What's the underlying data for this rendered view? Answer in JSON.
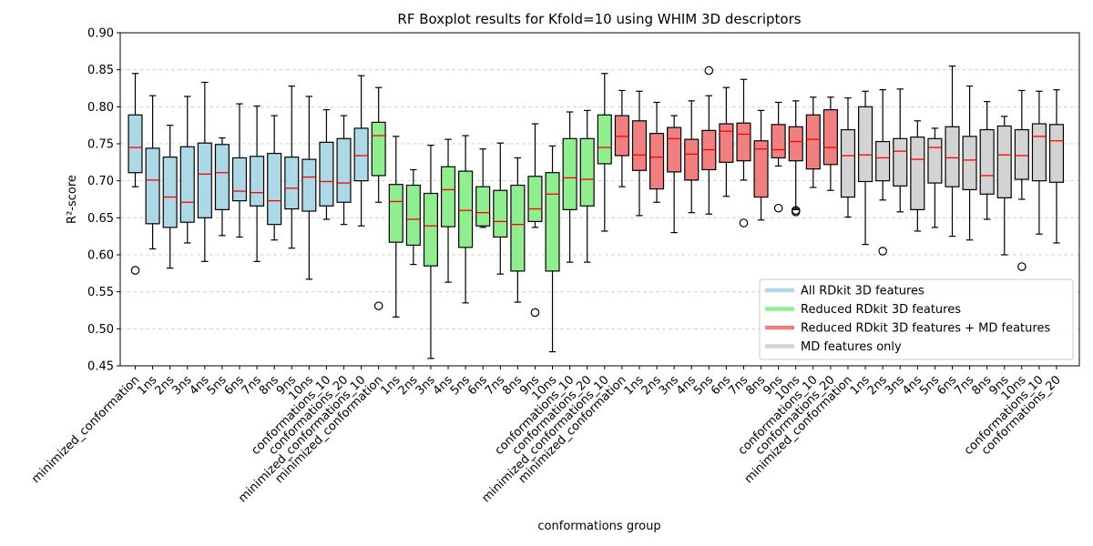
{
  "chart_data": {
    "type": "boxplot",
    "title": "RF Boxplot results for Kfold=10 using WHIM 3D descriptors",
    "xlabel": "conformations group",
    "ylabel": "R²-score",
    "ylim": [
      0.45,
      0.9
    ],
    "yticks": [
      "0.45",
      "0.50",
      "0.55",
      "0.60",
      "0.65",
      "0.70",
      "0.75",
      "0.80",
      "0.85",
      "0.90"
    ],
    "grid": "y-dashed",
    "legend_position": "lower-right",
    "median_color": "#ff0000",
    "groups": [
      {
        "name": "All RDkit 3D features",
        "color": "#add8e6",
        "boxes": [
          {
            "label": "minimized_conformation",
            "whislo": 0.692,
            "q1": 0.711,
            "med": 0.745,
            "q3": 0.789,
            "whishi": 0.845,
            "fliers": [
              0.579
            ]
          },
          {
            "label": "1ns",
            "whislo": 0.608,
            "q1": 0.642,
            "med": 0.701,
            "q3": 0.744,
            "whishi": 0.815,
            "fliers": []
          },
          {
            "label": "2ns",
            "whislo": 0.582,
            "q1": 0.637,
            "med": 0.678,
            "q3": 0.732,
            "whishi": 0.775,
            "fliers": []
          },
          {
            "label": "3ns",
            "whislo": 0.616,
            "q1": 0.644,
            "med": 0.671,
            "q3": 0.746,
            "whishi": 0.814,
            "fliers": []
          },
          {
            "label": "4ns",
            "whislo": 0.591,
            "q1": 0.65,
            "med": 0.709,
            "q3": 0.751,
            "whishi": 0.833,
            "fliers": []
          },
          {
            "label": "5ns",
            "whislo": 0.626,
            "q1": 0.661,
            "med": 0.711,
            "q3": 0.749,
            "whishi": 0.758,
            "fliers": []
          },
          {
            "label": "6ns",
            "whislo": 0.624,
            "q1": 0.673,
            "med": 0.686,
            "q3": 0.731,
            "whishi": 0.804,
            "fliers": []
          },
          {
            "label": "7ns",
            "whislo": 0.591,
            "q1": 0.666,
            "med": 0.684,
            "q3": 0.733,
            "whishi": 0.801,
            "fliers": []
          },
          {
            "label": "8ns",
            "whislo": 0.62,
            "q1": 0.641,
            "med": 0.673,
            "q3": 0.737,
            "whishi": 0.788,
            "fliers": []
          },
          {
            "label": "9ns",
            "whislo": 0.609,
            "q1": 0.662,
            "med": 0.69,
            "q3": 0.732,
            "whishi": 0.828,
            "fliers": []
          },
          {
            "label": "10ns",
            "whislo": 0.567,
            "q1": 0.659,
            "med": 0.705,
            "q3": 0.729,
            "whishi": 0.814,
            "fliers": []
          },
          {
            "label": "conformations_10",
            "whislo": 0.648,
            "q1": 0.666,
            "med": 0.699,
            "q3": 0.752,
            "whishi": 0.796,
            "fliers": []
          },
          {
            "label": "conformations_20",
            "whislo": 0.641,
            "q1": 0.671,
            "med": 0.697,
            "q3": 0.757,
            "whishi": 0.788,
            "fliers": []
          },
          {
            "label": "minimized_conformations_10",
            "whislo": 0.639,
            "q1": 0.7,
            "med": 0.734,
            "q3": 0.771,
            "whishi": 0.842,
            "fliers": []
          }
        ]
      },
      {
        "name": "Reduced RDkit 3D features",
        "color": "#90ee90",
        "boxes": [
          {
            "label": "minimized_conformation",
            "whislo": 0.671,
            "q1": 0.707,
            "med": 0.761,
            "q3": 0.779,
            "whishi": 0.826,
            "fliers": [
              0.531
            ]
          },
          {
            "label": "1ns",
            "whislo": 0.516,
            "q1": 0.617,
            "med": 0.672,
            "q3": 0.695,
            "whishi": 0.76,
            "fliers": []
          },
          {
            "label": "2ns",
            "whislo": 0.587,
            "q1": 0.613,
            "med": 0.648,
            "q3": 0.694,
            "whishi": 0.715,
            "fliers": []
          },
          {
            "label": "3ns",
            "whislo": 0.46,
            "q1": 0.585,
            "med": 0.639,
            "q3": 0.683,
            "whishi": 0.748,
            "fliers": []
          },
          {
            "label": "4ns",
            "whislo": 0.563,
            "q1": 0.638,
            "med": 0.688,
            "q3": 0.719,
            "whishi": 0.756,
            "fliers": []
          },
          {
            "label": "5ns",
            "whislo": 0.535,
            "q1": 0.61,
            "med": 0.66,
            "q3": 0.713,
            "whishi": 0.761,
            "fliers": []
          },
          {
            "label": "6ns",
            "whislo": 0.637,
            "q1": 0.639,
            "med": 0.657,
            "q3": 0.692,
            "whishi": 0.743,
            "fliers": []
          },
          {
            "label": "7ns",
            "whislo": 0.574,
            "q1": 0.624,
            "med": 0.645,
            "q3": 0.687,
            "whishi": 0.751,
            "fliers": []
          },
          {
            "label": "8ns",
            "whislo": 0.536,
            "q1": 0.578,
            "med": 0.641,
            "q3": 0.694,
            "whishi": 0.731,
            "fliers": []
          },
          {
            "label": "9ns",
            "whislo": 0.637,
            "q1": 0.645,
            "med": 0.662,
            "q3": 0.706,
            "whishi": 0.777,
            "fliers": [
              0.522
            ]
          },
          {
            "label": "10ns",
            "whislo": 0.469,
            "q1": 0.578,
            "med": 0.682,
            "q3": 0.711,
            "whishi": 0.747,
            "fliers": []
          },
          {
            "label": "conformations_10",
            "whislo": 0.59,
            "q1": 0.661,
            "med": 0.704,
            "q3": 0.757,
            "whishi": 0.793,
            "fliers": []
          },
          {
            "label": "conformations_20",
            "whislo": 0.59,
            "q1": 0.666,
            "med": 0.702,
            "q3": 0.757,
            "whishi": 0.795,
            "fliers": []
          },
          {
            "label": "minimized_conformations_10",
            "whislo": 0.632,
            "q1": 0.723,
            "med": 0.745,
            "q3": 0.789,
            "whishi": 0.845,
            "fliers": []
          }
        ]
      },
      {
        "name": "Reduced RDkit 3D features + MD features",
        "color": "#f08080",
        "boxes": [
          {
            "label": "minimized_conformation",
            "whislo": 0.692,
            "q1": 0.734,
            "med": 0.76,
            "q3": 0.788,
            "whishi": 0.822,
            "fliers": []
          },
          {
            "label": "1ns",
            "whislo": 0.653,
            "q1": 0.714,
            "med": 0.735,
            "q3": 0.781,
            "whishi": 0.821,
            "fliers": []
          },
          {
            "label": "2ns",
            "whislo": 0.671,
            "q1": 0.689,
            "med": 0.732,
            "q3": 0.764,
            "whishi": 0.806,
            "fliers": []
          },
          {
            "label": "3ns",
            "whislo": 0.63,
            "q1": 0.712,
            "med": 0.757,
            "q3": 0.772,
            "whishi": 0.788,
            "fliers": []
          },
          {
            "label": "4ns",
            "whislo": 0.657,
            "q1": 0.701,
            "med": 0.736,
            "q3": 0.756,
            "whishi": 0.808,
            "fliers": []
          },
          {
            "label": "5ns",
            "whislo": 0.655,
            "q1": 0.715,
            "med": 0.742,
            "q3": 0.768,
            "whishi": 0.815,
            "fliers": [
              0.849
            ]
          },
          {
            "label": "6ns",
            "whislo": 0.679,
            "q1": 0.725,
            "med": 0.767,
            "q3": 0.777,
            "whishi": 0.826,
            "fliers": []
          },
          {
            "label": "7ns",
            "whislo": 0.701,
            "q1": 0.727,
            "med": 0.763,
            "q3": 0.778,
            "whishi": 0.837,
            "fliers": [
              0.643
            ]
          },
          {
            "label": "8ns",
            "whislo": 0.647,
            "q1": 0.678,
            "med": 0.743,
            "q3": 0.754,
            "whishi": 0.795,
            "fliers": []
          },
          {
            "label": "9ns",
            "whislo": 0.72,
            "q1": 0.731,
            "med": 0.742,
            "q3": 0.776,
            "whishi": 0.806,
            "fliers": [
              0.663
            ]
          },
          {
            "label": "10ns",
            "whislo": 0.661,
            "q1": 0.727,
            "med": 0.753,
            "q3": 0.773,
            "whishi": 0.808,
            "fliers": [
              0.66,
              0.658
            ]
          },
          {
            "label": "conformations_10",
            "whislo": 0.691,
            "q1": 0.716,
            "med": 0.756,
            "q3": 0.789,
            "whishi": 0.813,
            "fliers": []
          },
          {
            "label": "conformations_20",
            "whislo": 0.687,
            "q1": 0.722,
            "med": 0.745,
            "q3": 0.796,
            "whishi": 0.813,
            "fliers": []
          }
        ]
      },
      {
        "name": "MD features only",
        "color": "#d3d3d3",
        "boxes": [
          {
            "label": "minimized_conformation",
            "whislo": 0.651,
            "q1": 0.678,
            "med": 0.734,
            "q3": 0.769,
            "whishi": 0.812,
            "fliers": []
          },
          {
            "label": "1ns",
            "whislo": 0.614,
            "q1": 0.699,
            "med": 0.735,
            "q3": 0.8,
            "whishi": 0.821,
            "fliers": []
          },
          {
            "label": "2ns",
            "whislo": 0.674,
            "q1": 0.7,
            "med": 0.731,
            "q3": 0.753,
            "whishi": 0.823,
            "fliers": [
              0.605
            ]
          },
          {
            "label": "3ns",
            "whislo": 0.658,
            "q1": 0.693,
            "med": 0.74,
            "q3": 0.757,
            "whishi": 0.824,
            "fliers": []
          },
          {
            "label": "4ns",
            "whislo": 0.632,
            "q1": 0.661,
            "med": 0.729,
            "q3": 0.759,
            "whishi": 0.781,
            "fliers": []
          },
          {
            "label": "5ns",
            "whislo": 0.637,
            "q1": 0.697,
            "med": 0.745,
            "q3": 0.757,
            "whishi": 0.771,
            "fliers": []
          },
          {
            "label": "6ns",
            "whislo": 0.625,
            "q1": 0.692,
            "med": 0.731,
            "q3": 0.773,
            "whishi": 0.855,
            "fliers": []
          },
          {
            "label": "7ns",
            "whislo": 0.62,
            "q1": 0.688,
            "med": 0.728,
            "q3": 0.76,
            "whishi": 0.828,
            "fliers": []
          },
          {
            "label": "8ns",
            "whislo": 0.648,
            "q1": 0.682,
            "med": 0.707,
            "q3": 0.769,
            "whishi": 0.807,
            "fliers": []
          },
          {
            "label": "9ns",
            "whislo": 0.6,
            "q1": 0.677,
            "med": 0.735,
            "q3": 0.774,
            "whishi": 0.787,
            "fliers": []
          },
          {
            "label": "10ns",
            "whislo": 0.675,
            "q1": 0.702,
            "med": 0.734,
            "q3": 0.769,
            "whishi": 0.822,
            "fliers": [
              0.584
            ]
          },
          {
            "label": "conformations_10",
            "whislo": 0.628,
            "q1": 0.7,
            "med": 0.76,
            "q3": 0.777,
            "whishi": 0.821,
            "fliers": []
          },
          {
            "label": "conformations_20",
            "whislo": 0.616,
            "q1": 0.698,
            "med": 0.754,
            "q3": 0.776,
            "whishi": 0.823,
            "fliers": []
          }
        ]
      }
    ]
  }
}
